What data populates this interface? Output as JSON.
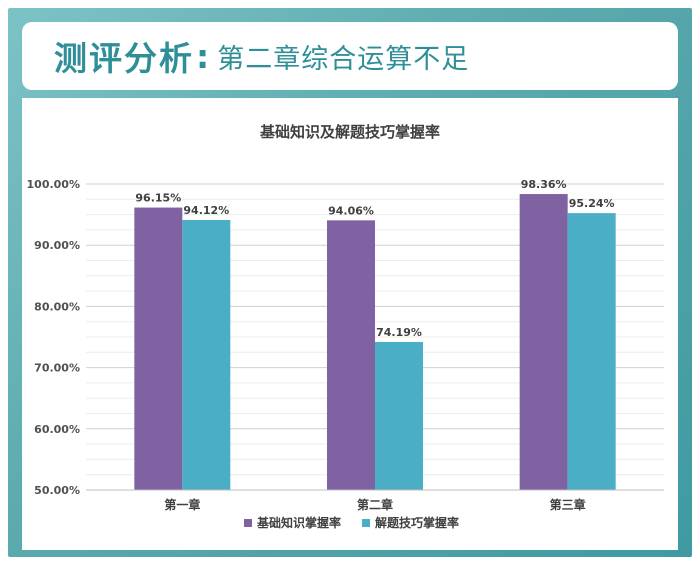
{
  "header": {
    "title": "测评分析",
    "colon": ":",
    "subtitle": "第二章综合运算不足"
  },
  "colors": {
    "frame": "#5aa9ad",
    "accent_text": "#2e8f98",
    "series_1": "#7e62a1",
    "series_2": "#4aaec6"
  },
  "chart_data": {
    "type": "bar",
    "title": "基础知识及解题技巧掌握率",
    "xlabel": "",
    "ylabel": "",
    "categories": [
      "第一章",
      "第二章",
      "第三章"
    ],
    "series": [
      {
        "name": "基础知识掌握率",
        "values": [
          96.15,
          94.06,
          98.36
        ],
        "labels": [
          "96.15%",
          "94.06%",
          "98.36%"
        ],
        "color": "#7e62a1"
      },
      {
        "name": "解题技巧掌握率",
        "values": [
          94.12,
          74.19,
          95.24
        ],
        "labels": [
          "94.12%",
          "74.19%",
          "95.24%"
        ],
        "color": "#4aaec6"
      }
    ],
    "ylim": [
      50,
      100
    ],
    "yticks": [
      50,
      60,
      70,
      80,
      90,
      100
    ],
    "ytick_labels": [
      "50.00%",
      "60.00%",
      "70.00%",
      "80.00%",
      "90.00%",
      "100.00%"
    ],
    "grid": true,
    "legend_position": "bottom"
  }
}
